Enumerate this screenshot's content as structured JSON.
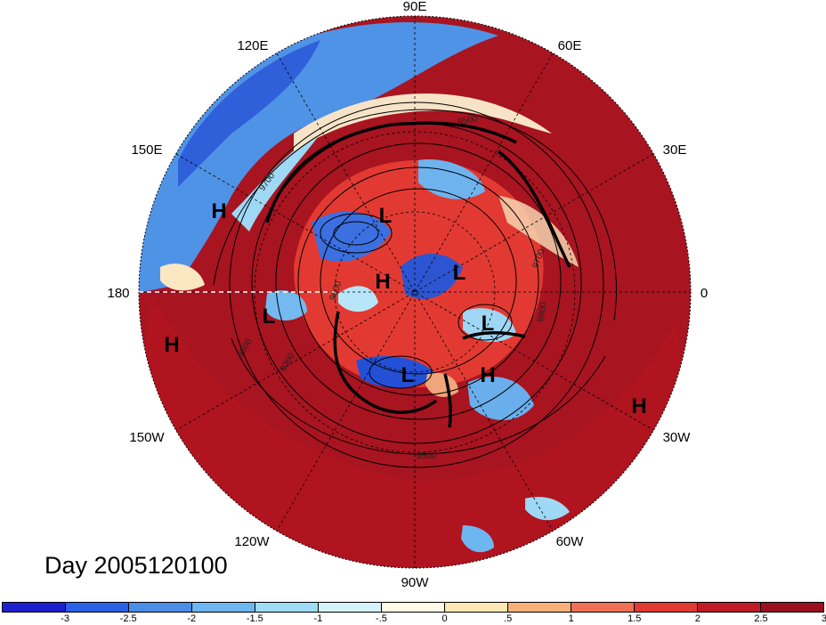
{
  "caption": "Day 2005120100",
  "longitude_labels": [
    {
      "text": "90E"
    },
    {
      "text": "60E"
    },
    {
      "text": "30E"
    },
    {
      "text": "0"
    },
    {
      "text": "30W"
    },
    {
      "text": "60W"
    },
    {
      "text": "90W"
    },
    {
      "text": "120W"
    },
    {
      "text": "150W"
    },
    {
      "text": "180"
    },
    {
      "text": "150E"
    },
    {
      "text": "120E"
    }
  ],
  "pressure_centers": [
    {
      "label": "H"
    },
    {
      "label": "L"
    },
    {
      "label": "H"
    },
    {
      "label": "L"
    },
    {
      "label": "L"
    },
    {
      "label": "L"
    },
    {
      "label": "L"
    },
    {
      "label": "H"
    },
    {
      "label": "H"
    },
    {
      "label": "H"
    }
  ],
  "contour_labels": [
    "9700",
    "9500",
    "9600",
    "9700",
    "9800",
    "9300",
    "9500",
    "9500"
  ],
  "colorbar": {
    "colors": [
      "#1d1fcf",
      "#2b60e8",
      "#4a8ee8",
      "#6db6f0",
      "#9fdcf7",
      "#d6f2fb",
      "#fffbe6",
      "#fde8b4",
      "#f7b07a",
      "#f07055",
      "#e03a33",
      "#c11b26",
      "#9b0f1f"
    ],
    "tick_labels": [
      "-3",
      "-2.5",
      "-2",
      "-1.5",
      "-1",
      "-.5",
      "0",
      ".5",
      "1",
      "1.5",
      "2",
      "2.5",
      "3"
    ]
  }
}
